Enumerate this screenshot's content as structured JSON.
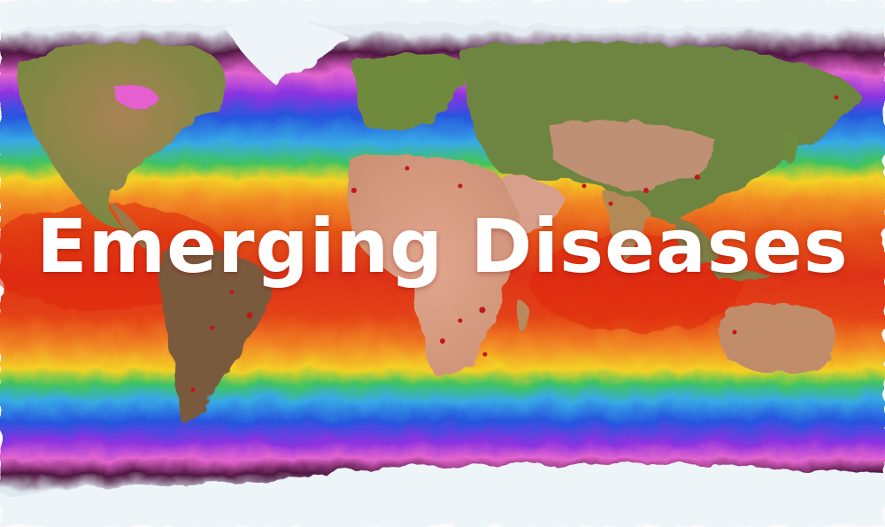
{
  "title": "Emerging Diseases",
  "map": {
    "projection": "equirectangular",
    "subject": "sea-surface-temperature-world-map",
    "colors": {
      "ice": "#eaf3f8",
      "coldest": "#4a0d3a",
      "magenta": "#e55fd0",
      "purple": "#8a2be2",
      "blue": "#1d4fe0",
      "cyan": "#2fa8e8",
      "green": "#39c45a",
      "yellow": "#f7d21b",
      "orange": "#f58a1c",
      "red": "#e02a10",
      "land-green": "#6f8a3c",
      "land-desert": "#d59a7f",
      "land-tan": "#b98a5c",
      "hotspot": "#c2171a"
    }
  }
}
